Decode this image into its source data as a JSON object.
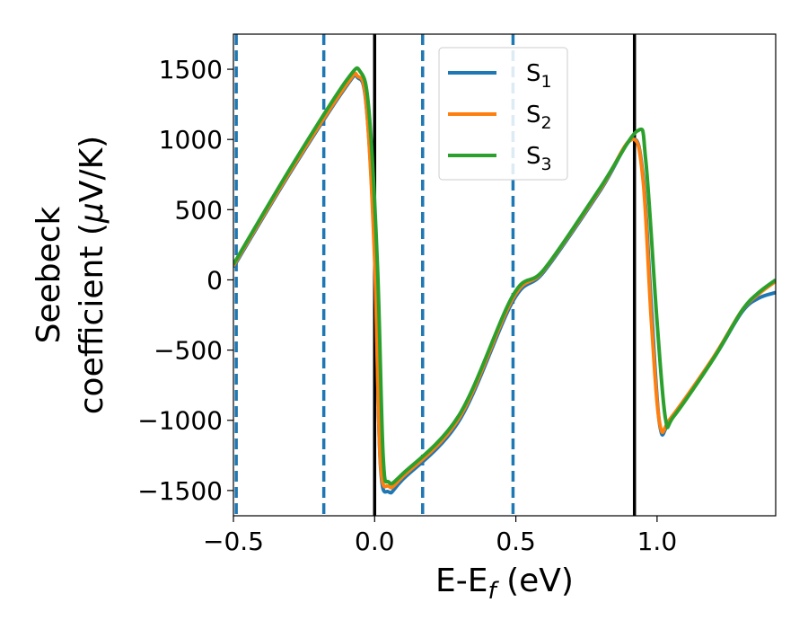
{
  "chart_data": {
    "type": "line",
    "xlabel": {
      "base": "E-E",
      "sub": "f",
      "rest": " (eV)"
    },
    "ylabel": {
      "line1": "Seebeck",
      "line2_pre": "coefficient  (",
      "mu": "μ",
      "line2_post": "V/K)"
    },
    "xlim": [
      -0.5,
      1.42
    ],
    "ylim": [
      -1680,
      1750
    ],
    "xticks": [
      {
        "v": -0.5,
        "label": "−0.5"
      },
      {
        "v": 0.0,
        "label": "0.0"
      },
      {
        "v": 0.5,
        "label": "0.5"
      },
      {
        "v": 1.0,
        "label": "1.0"
      }
    ],
    "yticks": [
      {
        "v": -1500,
        "label": "−1500"
      },
      {
        "v": -1000,
        "label": "−1000"
      },
      {
        "v": -500,
        "label": "−500"
      },
      {
        "v": 0,
        "label": "0"
      },
      {
        "v": 500,
        "label": "500"
      },
      {
        "v": 1000,
        "label": "1000"
      },
      {
        "v": 1500,
        "label": "1500"
      }
    ],
    "legend_position": "top-center",
    "vlines_solid": [
      0.0,
      0.92
    ],
    "vlines_dashed": [
      -0.49,
      -0.18,
      0.17,
      0.49
    ],
    "vline_solid_color": "#000000",
    "vline_dashed_color": "#1f77b4",
    "series": [
      {
        "name": "S",
        "sub": "1",
        "color": "#1f77b4",
        "points": [
          [
            -0.5,
            90
          ],
          [
            -0.3,
            760
          ],
          [
            -0.1,
            1380
          ],
          [
            -0.06,
            1440
          ],
          [
            -0.03,
            1250
          ],
          [
            0.0,
            200
          ],
          [
            0.02,
            -1300
          ],
          [
            0.05,
            -1510
          ],
          [
            0.1,
            -1420
          ],
          [
            0.3,
            -1000
          ],
          [
            0.49,
            -150
          ],
          [
            0.6,
            60
          ],
          [
            0.8,
            640
          ],
          [
            0.91,
            1000
          ],
          [
            0.95,
            750
          ],
          [
            0.98,
            -200
          ],
          [
            1.01,
            -1040
          ],
          [
            1.05,
            -990
          ],
          [
            1.2,
            -560
          ],
          [
            1.3,
            -230
          ],
          [
            1.36,
            -130
          ],
          [
            1.42,
            -90
          ]
        ]
      },
      {
        "name": "S",
        "sub": "2",
        "color": "#ff7f0e",
        "points": [
          [
            -0.5,
            100
          ],
          [
            -0.3,
            770
          ],
          [
            -0.1,
            1390
          ],
          [
            -0.06,
            1450
          ],
          [
            -0.03,
            1260
          ],
          [
            0.0,
            150
          ],
          [
            0.02,
            -1280
          ],
          [
            0.05,
            -1470
          ],
          [
            0.1,
            -1400
          ],
          [
            0.3,
            -980
          ],
          [
            0.49,
            -130
          ],
          [
            0.6,
            70
          ],
          [
            0.8,
            650
          ],
          [
            0.91,
            1000
          ],
          [
            0.95,
            720
          ],
          [
            0.98,
            -300
          ],
          [
            1.01,
            -1030
          ],
          [
            1.05,
            -980
          ],
          [
            1.2,
            -550
          ],
          [
            1.3,
            -220
          ],
          [
            1.36,
            -100
          ],
          [
            1.42,
            -10
          ]
        ]
      },
      {
        "name": "S",
        "sub": "3",
        "color": "#2ca02c",
        "points": [
          [
            -0.5,
            110
          ],
          [
            -0.3,
            790
          ],
          [
            -0.1,
            1420
          ],
          [
            -0.05,
            1480
          ],
          [
            -0.02,
            1200
          ],
          [
            0.01,
            100
          ],
          [
            0.03,
            -1250
          ],
          [
            0.05,
            -1440
          ],
          [
            0.1,
            -1380
          ],
          [
            0.3,
            -960
          ],
          [
            0.49,
            -110
          ],
          [
            0.6,
            75
          ],
          [
            0.8,
            660
          ],
          [
            0.93,
            1060
          ],
          [
            0.96,
            850
          ],
          [
            1.0,
            -300
          ],
          [
            1.03,
            -990
          ],
          [
            1.06,
            -970
          ],
          [
            1.2,
            -560
          ],
          [
            1.3,
            -220
          ],
          [
            1.36,
            -90
          ],
          [
            1.42,
            0
          ]
        ]
      }
    ]
  }
}
